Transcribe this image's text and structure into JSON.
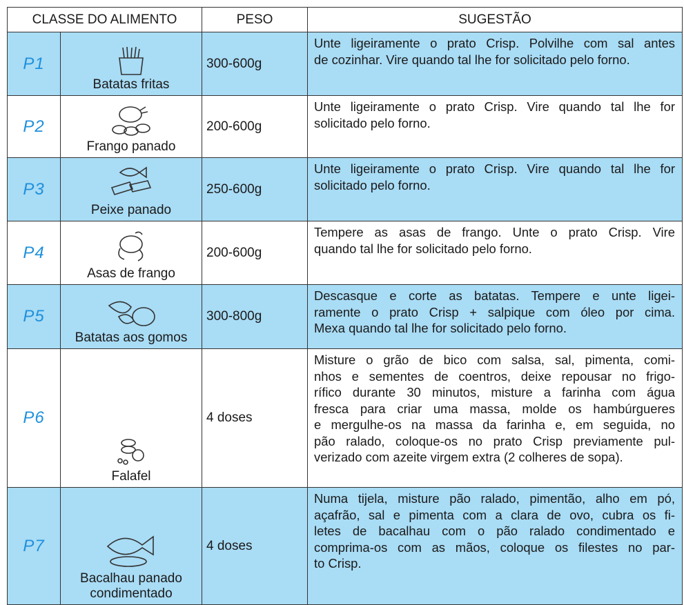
{
  "header": {
    "food_class": "CLASSE DO ALIMENTO",
    "weight": "PESO",
    "suggestion": "SUGESTÃO"
  },
  "rows": [
    {
      "code": "P1",
      "food": "Batatas fritas",
      "weight": "300-600g",
      "suggestion": [
        "Unte ligeiramente o prato Crisp. Polvilhe com sal antes",
        "de cozinhar. Vire quando tal lhe for solicitado pelo forno."
      ]
    },
    {
      "code": "P2",
      "food": "Frango panado",
      "weight": "200-600g",
      "suggestion": [
        "Unte ligeiramente o prato Crisp. Vire quando tal lhe for",
        "solicitado pelo forno."
      ]
    },
    {
      "code": "P3",
      "food": "Peixe panado",
      "weight": "250-600g",
      "suggestion": [
        "Unte ligeiramente o prato Crisp. Vire quando tal lhe for",
        "solicitado pelo forno."
      ]
    },
    {
      "code": "P4",
      "food": "Asas de frango",
      "weight": "200-600g",
      "suggestion": [
        "Tempere as asas de frango. Unte o prato Crisp. Vire",
        "quando tal lhe for solicitado pelo forno."
      ]
    },
    {
      "code": "P5",
      "food": "Batatas aos gomos",
      "weight": "300-800g",
      "suggestion": [
        "Descasque e corte as batatas. Tempere e unte ligei-",
        "ramente o prato Crisp + salpique com óleo por cima.",
        "Mexa quando tal lhe for solicitado pelo forno."
      ]
    },
    {
      "code": "P6",
      "food": "Falafel",
      "weight": "4 doses",
      "suggestion": [
        "Misture o grão de bico com salsa, sal, pimenta, comi-",
        "nhos e sementes de coentros, deixe repousar no frigo-",
        "rífico durante 30 minutos, misture a farinha com água",
        "fresca para criar uma massa, molde os hambúrgueres",
        "e mergulhe-os na massa da farinha e, em seguida, no",
        "pão ralado, coloque-os no prato Crisp previamente pul-",
        "verizado com azeite virgem extra (2 colheres de sopa)."
      ]
    },
    {
      "code": "P7",
      "food": "Bacalhau panado condimentado",
      "weight": "4 doses",
      "suggestion": [
        "Numa tijela, misture pão ralado, pimentão, alho em pó,",
        "açafrão, sal e pimenta com a clara de ovo, cubra os fi-",
        "letes de bacalhau com o pão ralado condimentado e",
        "comprima-os com as mãos, coloque os filestes no par-",
        "to Crisp."
      ]
    }
  ]
}
